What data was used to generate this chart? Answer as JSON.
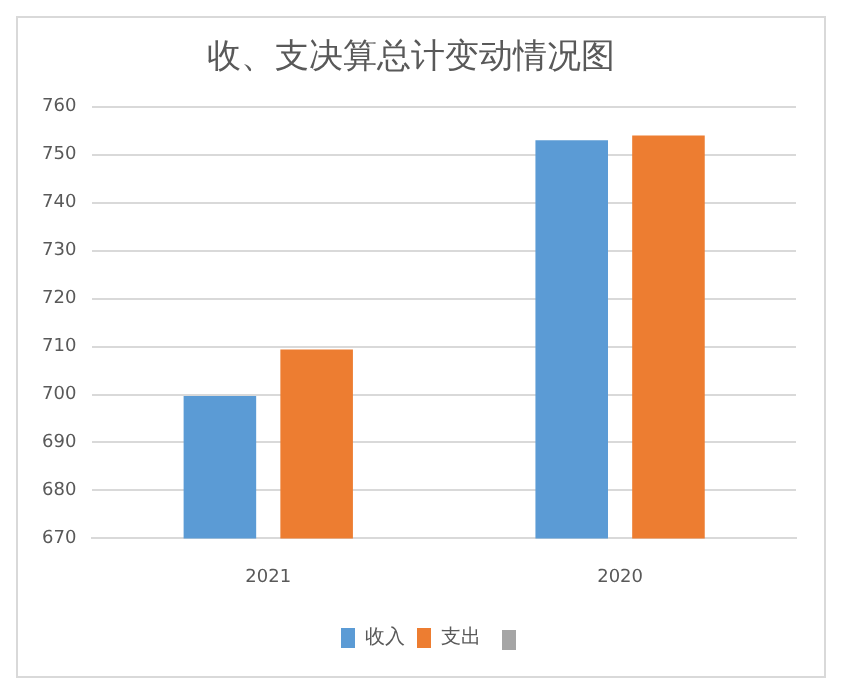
{
  "chart_data": {
    "type": "bar",
    "title": "收、支决算总计变动情况图",
    "categories": [
      "2021",
      "2020"
    ],
    "series": [
      {
        "name": "收入",
        "color": "#5b9bd5",
        "values": [
          699.7,
          753
        ]
      },
      {
        "name": "支出",
        "color": "#ed7d31",
        "values": [
          709.4,
          754
        ]
      }
    ],
    "ylim": [
      670,
      760
    ],
    "yticks": [
      670,
      680,
      690,
      700,
      710,
      720,
      730,
      740,
      750,
      760
    ],
    "grid": "y",
    "legend": "bottom"
  }
}
